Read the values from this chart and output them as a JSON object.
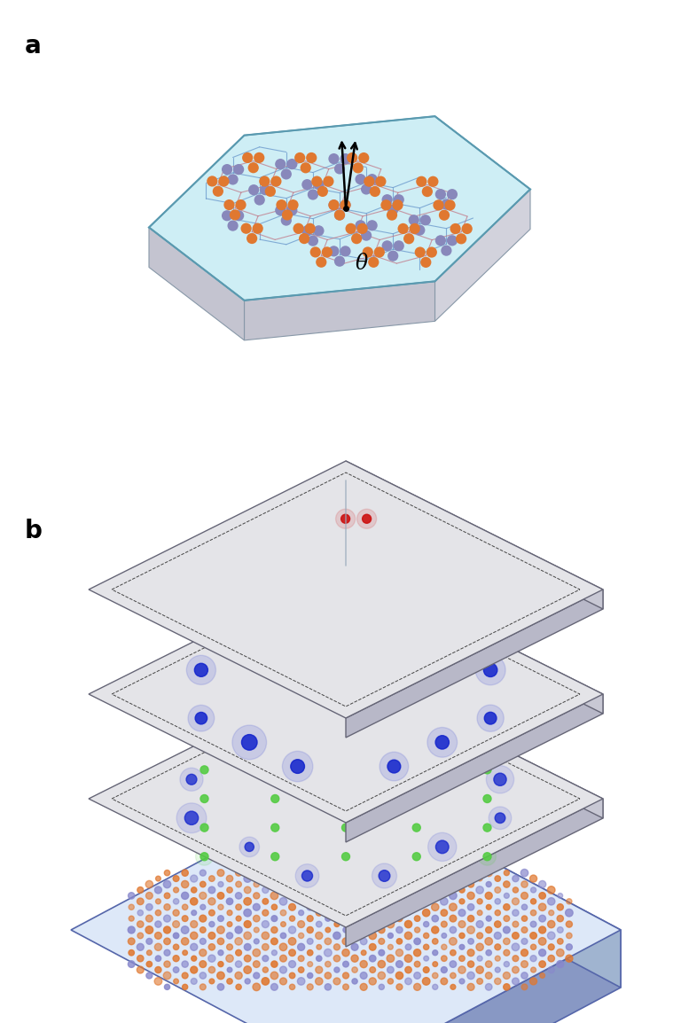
{
  "panel_a_label": "a",
  "panel_b_label": "b",
  "theta_label": "θ",
  "hex_face_color": "#ceeef5",
  "hex_edge_color": "#5a9ab0",
  "atom_orange_color": "#e07830",
  "atom_blue_color": "#8888bb",
  "lattice_line_blue": "#6090c8",
  "lattice_line_red": "#c07080",
  "corner_state_color": "#cc1111",
  "edge_state_color": "#1122cc",
  "bulk_state_color": "#55cc44",
  "slab_top_gray": "#e4e4e8",
  "slab_right_gray": "#c8c8d4",
  "slab_front_gray": "#b8b8c8",
  "slab_edge_color": "#666677",
  "bot_slab_top": "#dde8f8",
  "bot_slab_right": "#a0b4d0",
  "bot_slab_front": "#8898c4",
  "bot_slab_edge": "#5566aa",
  "background_color": "#ffffff"
}
